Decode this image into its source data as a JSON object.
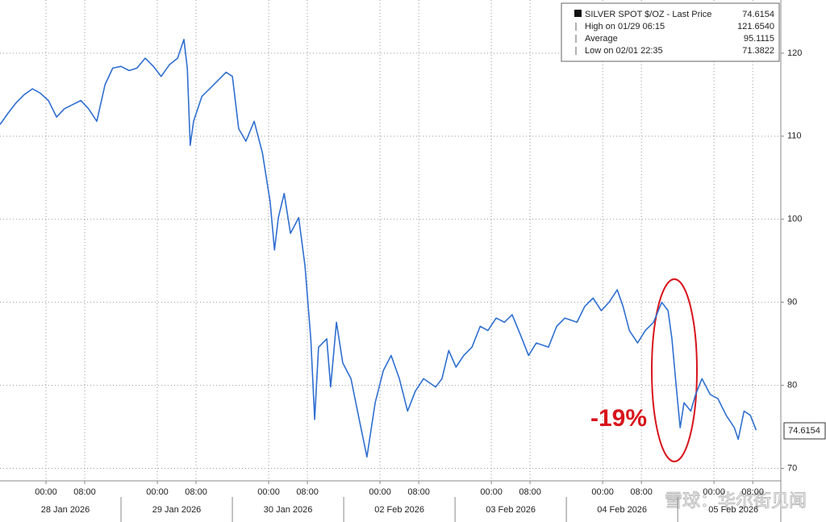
{
  "chart_data": {
    "type": "line",
    "series": [
      {
        "name": "SILVER SPOT $/OZ - Last Price",
        "color": "#2f6fd0",
        "x": [
          -9.5,
          -7.8,
          -6.2,
          -4.5,
          -2.8,
          -1.2,
          0.5,
          2.2,
          3.8,
          5.5,
          7.2,
          8.8,
          10.5,
          12.2,
          13.8,
          15.5,
          17.2,
          18.8,
          20.5,
          22.2,
          23.8,
          25.5,
          27.2,
          28.5,
          29.2,
          29.8,
          30.5,
          32.2,
          33.8,
          35.5,
          37.2,
          38.5,
          39.8,
          41.3,
          43,
          44.7,
          46.3,
          47.2,
          48,
          49.2,
          50.5,
          52.2,
          53.5,
          54.7,
          55.5,
          56.3,
          58,
          58.8,
          60,
          61.3,
          63,
          64.7,
          66.3,
          68,
          69.7,
          71.3,
          73,
          74.7,
          76.3,
          78,
          80.5,
          81.8,
          83.2,
          84.7,
          86.3,
          88,
          89.7,
          91.3,
          93,
          94.7,
          96.3,
          98,
          99.7,
          101.3,
          103.8,
          105.5,
          107.2,
          109.7,
          111.3,
          113,
          114.7,
          116.3,
          118,
          119.2,
          120.5,
          122.2,
          123.8,
          125.5,
          127.2,
          128.5,
          129.3,
          130.2,
          131,
          131.8,
          133.2,
          134.2,
          135.5,
          137.2,
          138.8,
          140.5,
          142.2,
          143,
          144.2,
          145.5,
          146.7
        ],
        "values": [
          111.4,
          112.8,
          114,
          115,
          115.7,
          115.2,
          114.3,
          112.3,
          113.3,
          113.8,
          114.3,
          113.3,
          111.8,
          116.2,
          118.2,
          118.4,
          117.9,
          118.2,
          119.4,
          118.4,
          117.2,
          118.6,
          119.4,
          121.654,
          118.2,
          108.9,
          111.8,
          114.8,
          115.7,
          116.7,
          117.7,
          117.2,
          110.9,
          109.4,
          111.8,
          108,
          102.1,
          96.3,
          100.2,
          103.1,
          98.3,
          100.2,
          94.4,
          85.6,
          75.9,
          84.6,
          85.6,
          79.8,
          87.6,
          82.7,
          80.8,
          75.9,
          71.3822,
          77.9,
          81.8,
          83.6,
          80.8,
          76.9,
          79.3,
          80.8,
          79.8,
          80.8,
          84.2,
          82.2,
          83.6,
          84.6,
          87.1,
          86.6,
          88.1,
          87.6,
          88.5,
          86.1,
          83.6,
          85.1,
          84.6,
          87.1,
          88.1,
          87.6,
          89.5,
          90.5,
          89,
          90,
          91.5,
          89.5,
          86.6,
          85.1,
          86.6,
          87.6,
          90,
          89,
          85.6,
          79.8,
          74.9,
          77.9,
          76.9,
          78.9,
          80.8,
          78.9,
          78.4,
          76.4,
          74.9,
          73.5,
          76.9,
          76.4,
          74.6154
        ]
      }
    ],
    "last_price": 74.6154,
    "stats": [
      {
        "name": "High on 01/29 06:15",
        "value": 121.654,
        "value_label": "121.6540"
      },
      {
        "name": "Average",
        "value": 95.1115,
        "value_label": "95.1115"
      },
      {
        "name": "Low on 02/01 22:35",
        "value": 71.3822,
        "value_label": "71.3822"
      }
    ],
    "annotation": "-19%",
    "xlim": [
      -9.5,
      151.8
    ],
    "xticks": [
      {
        "value": 0,
        "label": "00:00"
      },
      {
        "value": 8,
        "label": "08:00"
      },
      {
        "value": 23,
        "label": "00:00"
      },
      {
        "value": 31,
        "label": "08:00"
      },
      {
        "value": 46,
        "label": "00:00"
      },
      {
        "value": 54,
        "label": "08:00"
      },
      {
        "value": 69,
        "label": "00:00"
      },
      {
        "value": 77,
        "label": "08:00"
      },
      {
        "value": 92,
        "label": "00:00"
      },
      {
        "value": 100,
        "label": "08:00"
      },
      {
        "value": 115,
        "label": "00:00"
      },
      {
        "value": 123,
        "label": "08:00"
      },
      {
        "value": 138,
        "label": "00:00"
      },
      {
        "value": 146,
        "label": "08:00"
      }
    ],
    "date_labels": [
      {
        "value": 4,
        "label": "28 Jan 2026"
      },
      {
        "value": 27,
        "label": "29 Jan 2026"
      },
      {
        "value": 50,
        "label": "30 Jan 2026"
      },
      {
        "value": 73,
        "label": "02 Feb 2026"
      },
      {
        "value": 96,
        "label": "03 Feb 2026"
      },
      {
        "value": 119,
        "label": "04 Feb 2026"
      },
      {
        "value": 142,
        "label": "05 Feb 2026"
      }
    ],
    "ylim": [
      68.5,
      126.4
    ],
    "yticks": [
      70,
      80,
      90,
      100,
      110,
      120
    ],
    "grid": true,
    "watermark": "雪球：华尔街见闻"
  }
}
